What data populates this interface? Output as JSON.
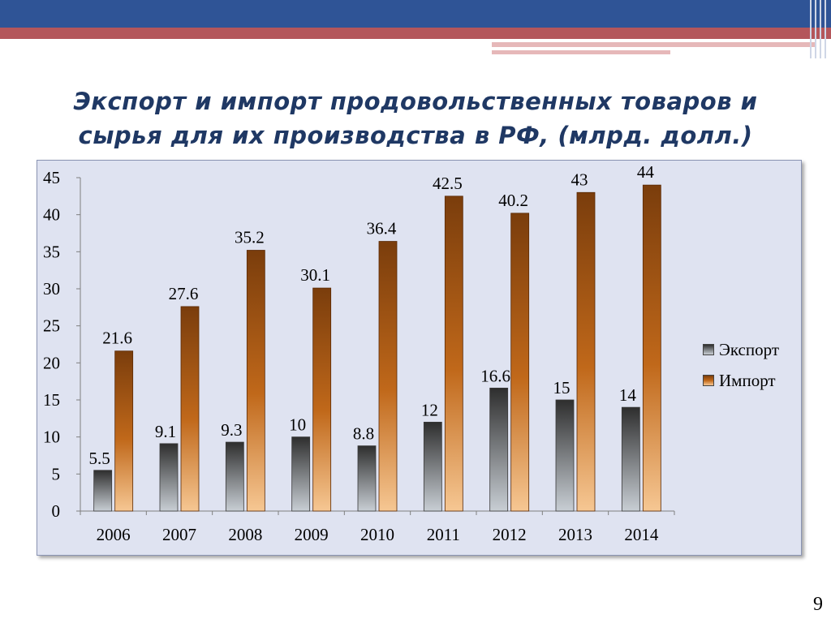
{
  "slide": {
    "title_line1": "Экспорт и импорт продовольственных товаров и",
    "title_line2": "сырья  для их производства в РФ, (млрд. долл.)",
    "page_number": "9"
  },
  "colors": {
    "export_top": "#2e2e2e",
    "export_bottom": "#c8ced4",
    "import_top": "#7a3d0c",
    "import_mid": "#c0681a",
    "import_bottom": "#f6c793",
    "plot_background": "#dfe3f1",
    "header_blue": "#2f5496",
    "header_red": "#b4565b"
  },
  "chart_data": {
    "type": "bar",
    "categories": [
      "2006",
      "2007",
      "2008",
      "2009",
      "2010",
      "2011",
      "2012",
      "2013",
      "2014"
    ],
    "series": [
      {
        "name": "Экспорт",
        "values": [
          5.5,
          9.1,
          9.3,
          10,
          8.8,
          12,
          16.6,
          15,
          14
        ],
        "labels": [
          "5.5",
          "9.1",
          "9.3",
          "10",
          "8.8",
          "12",
          "16.6",
          "15",
          "14"
        ]
      },
      {
        "name": "Импорт",
        "values": [
          21.6,
          27.6,
          35.2,
          30.1,
          36.4,
          42.5,
          40.2,
          43,
          44
        ],
        "labels": [
          "21.6",
          "27.6",
          "35.2",
          "30.1",
          "36.4",
          "42.5",
          "40.2",
          "43",
          "44"
        ]
      }
    ],
    "y_ticks": [
      "0",
      "5",
      "10",
      "15",
      "20",
      "25",
      "30",
      "35",
      "40",
      "45"
    ],
    "ylim": [
      0,
      45
    ],
    "grid": false,
    "legend_position": "right"
  }
}
